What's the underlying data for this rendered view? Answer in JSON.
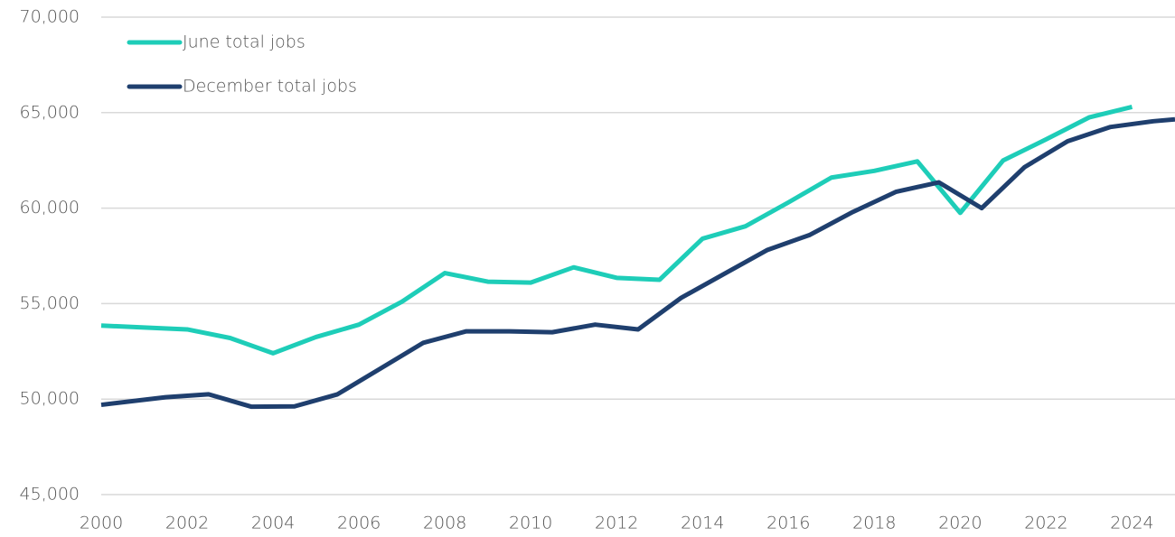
{
  "chart_data": {
    "type": "line",
    "series": [
      {
        "name": "June total jobs",
        "color": "#1ecdb8",
        "x": [
          2000,
          2001,
          2002,
          2003,
          2004,
          2005,
          2006,
          2007,
          2008,
          2009,
          2010,
          2011,
          2012,
          2013,
          2014,
          2015,
          2016,
          2017,
          2018,
          2019,
          2020,
          2021,
          2022,
          2023,
          2024
        ],
        "values": [
          53850,
          53750,
          53650,
          53200,
          52400,
          53250,
          53900,
          55100,
          56600,
          56150,
          56100,
          56900,
          56350,
          56250,
          58400,
          59050,
          60300,
          61600,
          61950,
          62450,
          59750,
          62500,
          63600,
          64750,
          65300
        ]
      },
      {
        "name": "December total jobs",
        "color": "#1f3f6e",
        "x": [
          2000,
          2001.5,
          2002.5,
          2003.5,
          2004.5,
          2005.5,
          2006.5,
          2007.5,
          2008.5,
          2009.5,
          2010.5,
          2011.5,
          2012.5,
          2013.5,
          2014.5,
          2015.5,
          2016.5,
          2017.5,
          2018.5,
          2019.5,
          2020.5,
          2021.5,
          2022.5,
          2023.5,
          2024.5,
          2025
        ],
        "values": [
          49700,
          50100,
          50250,
          49600,
          49620,
          50250,
          51600,
          52950,
          53550,
          53550,
          53500,
          53900,
          53650,
          55300,
          56550,
          57800,
          58600,
          59800,
          60850,
          61350,
          60000,
          62150,
          63500,
          64250,
          64550,
          64650
        ]
      }
    ],
    "xlim": [
      2000,
      2025
    ],
    "xticks": [
      2000,
      2002,
      2004,
      2006,
      2008,
      2010,
      2012,
      2014,
      2016,
      2018,
      2020,
      2022,
      2024
    ],
    "ylim": [
      45000,
      70000
    ],
    "yticks": [
      {
        "value": 45000,
        "label": "45,000"
      },
      {
        "value": 50000,
        "label": "50,000"
      },
      {
        "value": 55000,
        "label": "55,000"
      },
      {
        "value": 60000,
        "label": "60,000"
      },
      {
        "value": 65000,
        "label": "65,000"
      },
      {
        "value": 70000,
        "label": "70,000"
      }
    ],
    "grid": true,
    "legend": "top-left"
  }
}
